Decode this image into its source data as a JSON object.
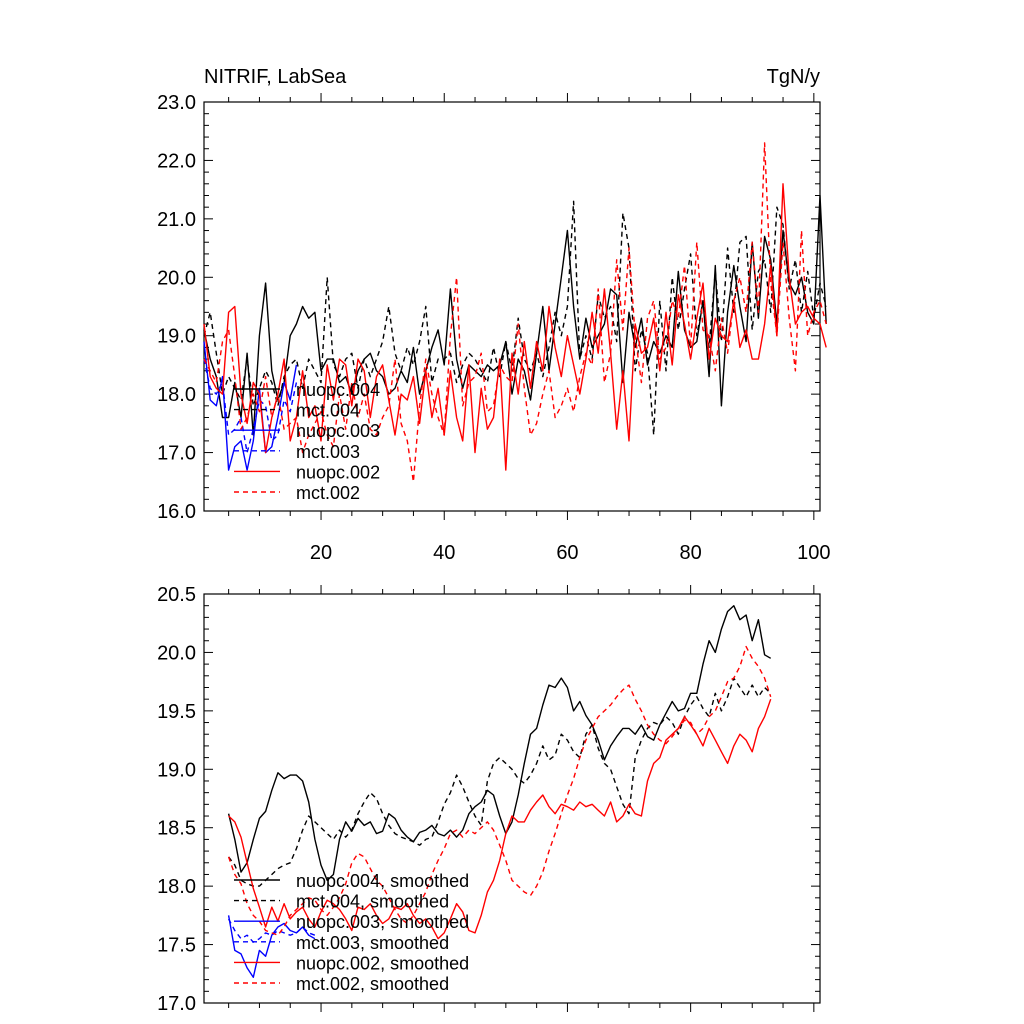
{
  "chart_data": [
    {
      "type": "line",
      "title": "NITRIF, LabSea",
      "units": "TgN/y",
      "xlim": [
        1,
        101
      ],
      "ylim": [
        16.0,
        23.0
      ],
      "x_ticks": [
        20,
        40,
        60,
        80,
        100
      ],
      "y_ticks": [
        "16.0",
        "17.0",
        "18.0",
        "19.0",
        "20.0",
        "21.0",
        "22.0",
        "23.0"
      ],
      "legend": {
        "placement": "bottom-left"
      },
      "series": [
        {
          "name": "nuopc.004",
          "color": "#000000",
          "dash": "solid",
          "x_start": 1,
          "values": [
            19.1,
            18.6,
            18.3,
            17.6,
            17.6,
            18.2,
            17.6,
            18.7,
            17.3,
            19.0,
            19.9,
            18.4,
            17.9,
            18.2,
            19.0,
            19.2,
            19.5,
            19.3,
            19.4,
            18.4,
            18.6,
            18.6,
            18.2,
            18.3,
            18.0,
            18.4,
            18.6,
            18.7,
            18.4,
            18.3,
            18.0,
            18.1,
            18.4,
            18.2,
            18.8,
            18.0,
            18.4,
            18.8,
            19.1,
            18.5,
            19.8,
            18.6,
            18.1,
            18.5,
            18.4,
            18.3,
            18.5,
            18.4,
            18.5,
            18.9,
            18.0,
            18.6,
            18.4,
            17.9,
            18.7,
            19.5,
            18.4,
            19.2,
            20.0,
            20.8,
            19.5,
            18.6,
            19.3,
            18.8,
            19.0,
            19.2,
            19.8,
            19.7,
            18.2,
            19.4,
            18.8,
            19.3,
            18.5,
            18.9,
            18.7,
            19.0,
            18.8,
            20.1,
            19.1,
            18.8,
            18.9,
            19.6,
            18.3,
            20.2,
            17.8,
            19.4,
            20.2,
            19.5,
            18.9,
            20.6,
            19.3,
            20.7,
            20.3,
            19.2,
            20.8,
            19.9,
            19.7,
            20.0,
            19.4,
            19.2,
            21.4,
            19.2
          ]
        },
        {
          "name": "mct.004",
          "color": "#000000",
          "dash": "dashed",
          "x_start": 1,
          "values": [
            19.0,
            19.4,
            18.7,
            18.0,
            18.3,
            18.1,
            17.9,
            18.6,
            17.8,
            18.1,
            18.4,
            18.2,
            17.8,
            18.3,
            18.5,
            18.6,
            18.1,
            18.6,
            18.4,
            18.2,
            20.0,
            18.5,
            18.3,
            18.6,
            18.7,
            18.1,
            18.6,
            18.3,
            18.6,
            18.9,
            19.5,
            18.7,
            18.4,
            18.8,
            18.5,
            18.9,
            19.5,
            18.2,
            18.6,
            18.6,
            18.7,
            18.2,
            18.5,
            18.7,
            18.6,
            18.4,
            18.2,
            18.8,
            18.3,
            18.9,
            18.4,
            19.3,
            18.6,
            18.4,
            18.7,
            18.3,
            18.8,
            19.4,
            19.0,
            19.5,
            21.3,
            18.6,
            19.0,
            18.6,
            19.7,
            19.3,
            19.5,
            18.9,
            21.1,
            20.5,
            18.4,
            19.1,
            18.7,
            17.3,
            19.6,
            18.4,
            20.0,
            19.1,
            19.8,
            20.4,
            19.0,
            19.6,
            18.8,
            20.1,
            18.9,
            20.5,
            19.4,
            20.6,
            20.7,
            19.1,
            20.1,
            20.3,
            19.4,
            21.2,
            20.9,
            19.8,
            20.3,
            19.4,
            20.1,
            19.3,
            19.9,
            19.5
          ]
        },
        {
          "name": "nuopc.003",
          "color": "#0000ff",
          "dash": "solid",
          "x_start": 1,
          "values": [
            18.9,
            17.9,
            17.8,
            18.3,
            16.7,
            17.1,
            17.2,
            16.7,
            17.2,
            18.1,
            17.0,
            17.1,
            17.6,
            18.2,
            17.9,
            18.5
          ]
        },
        {
          "name": "mct.003",
          "color": "#0000ff",
          "dash": "dashed",
          "x_start": 1,
          "values": [
            18.6,
            18.1,
            18.0,
            18.2,
            17.3,
            17.4,
            17.6,
            17.0,
            17.4,
            17.9,
            17.8,
            17.2,
            17.3,
            17.9,
            17.7,
            18.2
          ]
        },
        {
          "name": "nuopc.002",
          "color": "#ff0000",
          "dash": "solid",
          "x_start": 1,
          "values": [
            19.2,
            18.3,
            18.1,
            18.0,
            19.4,
            19.5,
            18.0,
            17.5,
            18.2,
            18.0,
            17.0,
            17.6,
            18.0,
            18.6,
            17.2,
            17.6,
            18.4,
            17.6,
            17.8,
            17.2,
            18.5,
            17.9,
            18.6,
            18.5,
            17.8,
            18.6,
            18.4,
            17.6,
            18.3,
            18.5,
            17.9,
            17.3,
            18.0,
            17.9,
            18.3,
            17.5,
            18.4,
            17.6,
            18.1,
            17.3,
            18.4,
            17.6,
            17.2,
            18.5,
            17.0,
            18.1,
            17.4,
            17.6,
            18.6,
            16.7,
            18.7,
            18.0,
            18.9,
            18.1,
            18.9,
            18.4,
            19.5,
            18.8,
            18.3,
            19.0,
            18.5,
            18.0,
            18.6,
            19.4,
            18.7,
            19.8,
            18.7,
            17.4,
            18.4,
            17.2,
            19.2,
            18.7,
            18.8,
            19.3,
            18.4,
            19.4,
            18.5,
            19.7,
            19.2,
            18.6,
            19.3,
            19.9,
            18.6,
            19.3,
            19.0,
            18.9,
            19.6,
            18.8,
            19.1,
            18.6,
            18.6,
            19.2,
            20.2,
            19.0,
            21.6,
            20.0,
            19.2,
            19.4,
            19.5,
            19.3,
            19.2,
            18.8
          ]
        },
        {
          "name": "mct.002",
          "color": "#ff0000",
          "dash": "dashed",
          "x_start": 1,
          "values": [
            18.6,
            18.4,
            18.2,
            18.9,
            19.1,
            18.3,
            17.4,
            17.6,
            18.0,
            17.7,
            18.3,
            17.6,
            18.0,
            17.4,
            17.5,
            17.6,
            17.0,
            17.3,
            17.5,
            17.7,
            17.3,
            17.1,
            18.0,
            17.4,
            18.2,
            17.6,
            18.0,
            17.4,
            17.3,
            17.6,
            17.8,
            18.6,
            17.5,
            17.2,
            16.5,
            17.8,
            18.6,
            18.0,
            17.6,
            17.3,
            19.0,
            20.0,
            17.8,
            18.2,
            18.3,
            18.7,
            17.7,
            17.8,
            18.5,
            18.3,
            18.2,
            19.2,
            18.1,
            17.3,
            17.5,
            18.0,
            18.4,
            17.6,
            17.8,
            18.1,
            17.7,
            18.3,
            18.7,
            18.5,
            19.8,
            18.2,
            18.7,
            20.3,
            19.1,
            20.5,
            19.0,
            18.2,
            19.3,
            19.6,
            18.6,
            18.8,
            19.6,
            19.3,
            20.2,
            18.8,
            20.6,
            19.1,
            19.0,
            18.4,
            19.3,
            18.7,
            19.6,
            20.0,
            19.4,
            20.6,
            19.4,
            22.3,
            19.9,
            19.0,
            20.6,
            19.3,
            18.4,
            20.8,
            19.0,
            19.4,
            19.6,
            19.2
          ]
        }
      ]
    },
    {
      "type": "line",
      "title": "",
      "xlim": [
        1,
        101
      ],
      "ylim": [
        17.0,
        20.5
      ],
      "x_ticks": [
        20,
        40,
        60,
        80,
        100
      ],
      "y_ticks": [
        "17.0",
        "17.5",
        "18.0",
        "18.5",
        "19.0",
        "19.5",
        "20.0",
        "20.5"
      ],
      "legend": {
        "placement": "bottom-left"
      },
      "series": [
        {
          "name": "nuopc.004, smoothed",
          "color": "#000000",
          "dash": "solid",
          "x_start": 5,
          "values": [
            18.62,
            18.4,
            18.12,
            18.2,
            18.4,
            18.58,
            18.64,
            18.82,
            18.97,
            18.92,
            18.95,
            18.95,
            18.9,
            18.72,
            18.4,
            18.18,
            18.05,
            18.1,
            18.4,
            18.55,
            18.47,
            18.58,
            18.52,
            18.55,
            18.45,
            18.47,
            18.62,
            18.58,
            18.48,
            18.42,
            18.38,
            18.46,
            18.48,
            18.52,
            18.45,
            18.43,
            18.48,
            18.42,
            18.48,
            18.62,
            18.68,
            18.72,
            18.82,
            18.78,
            18.6,
            18.45,
            18.55,
            18.78,
            19.05,
            19.3,
            19.35,
            19.55,
            19.72,
            19.7,
            19.78,
            19.7,
            19.5,
            19.58,
            19.46,
            19.38,
            19.25,
            19.08,
            19.2,
            19.28,
            19.35,
            19.35,
            19.3,
            19.38,
            19.28,
            19.25,
            19.38,
            19.48,
            19.58,
            19.5,
            19.52,
            19.65,
            19.65,
            19.9,
            20.1,
            20.0,
            20.2,
            20.35,
            20.4,
            20.28,
            20.32,
            20.1,
            20.28,
            19.98,
            19.95
          ]
        },
        {
          "name": "mct.004, smoothed",
          "color": "#000000",
          "dash": "dashed",
          "x_start": 5,
          "values": [
            18.25,
            18.18,
            18.05,
            18.02,
            18.0,
            18.0,
            18.05,
            18.1,
            18.15,
            18.18,
            18.2,
            18.32,
            18.48,
            18.6,
            18.55,
            18.5,
            18.45,
            18.4,
            18.48,
            18.42,
            18.48,
            18.62,
            18.72,
            18.8,
            18.75,
            18.62,
            18.52,
            18.45,
            18.42,
            18.4,
            18.38,
            18.35,
            18.4,
            18.42,
            18.55,
            18.7,
            18.8,
            18.95,
            18.85,
            18.72,
            18.6,
            18.52,
            18.9,
            19.05,
            19.1,
            19.05,
            19.0,
            18.92,
            18.88,
            18.95,
            19.05,
            19.2,
            19.08,
            19.12,
            19.3,
            19.25,
            19.15,
            19.1,
            19.3,
            19.38,
            19.18,
            19.05,
            19.0,
            18.85,
            18.7,
            18.62,
            19.1,
            19.25,
            19.35,
            19.4,
            19.38,
            19.45,
            19.4,
            19.3,
            19.45,
            19.55,
            19.62,
            19.52,
            19.45,
            19.65,
            19.5,
            19.62,
            19.78,
            19.7,
            19.62,
            19.72,
            19.62,
            19.7,
            19.65
          ]
        },
        {
          "name": "nuopc.003, smoothed",
          "color": "#0000ff",
          "dash": "solid",
          "x_start": 5,
          "values": [
            17.75,
            17.45,
            17.42,
            17.3,
            17.22,
            17.45,
            17.4,
            17.58,
            17.65,
            17.68,
            17.62,
            17.6,
            17.65,
            17.58,
            17.55
          ]
        },
        {
          "name": "mct.003, smoothed",
          "color": "#0000ff",
          "dash": "dashed",
          "x_start": 5,
          "values": [
            17.72,
            17.62,
            17.55,
            17.58,
            17.52,
            17.55,
            17.6,
            17.58,
            17.62,
            17.6,
            17.58,
            17.6,
            17.65,
            17.6,
            17.58
          ]
        },
        {
          "name": "nuopc.002, smoothed",
          "color": "#ff0000",
          "dash": "solid",
          "x_start": 5,
          "values": [
            18.6,
            18.55,
            18.42,
            18.2,
            17.98,
            17.82,
            17.65,
            17.82,
            17.7,
            17.85,
            17.72,
            17.78,
            17.82,
            17.72,
            17.65,
            17.78,
            17.88,
            17.85,
            17.8,
            17.72,
            17.62,
            17.82,
            17.8,
            17.85,
            17.75,
            17.68,
            17.72,
            17.82,
            17.8,
            17.85,
            17.75,
            17.68,
            17.72,
            17.65,
            17.55,
            17.6,
            17.72,
            17.85,
            17.78,
            17.62,
            17.6,
            17.75,
            17.95,
            18.05,
            18.22,
            18.45,
            18.6,
            18.55,
            18.55,
            18.65,
            18.72,
            18.78,
            18.68,
            18.62,
            18.7,
            18.68,
            18.65,
            18.72,
            18.68,
            18.7,
            18.65,
            18.6,
            18.72,
            18.55,
            18.6,
            18.7,
            18.62,
            18.6,
            18.9,
            19.05,
            19.1,
            19.25,
            19.3,
            19.35,
            19.45,
            19.38,
            19.3,
            19.2,
            19.35,
            19.25,
            19.15,
            19.05,
            19.2,
            19.3,
            19.25,
            19.15,
            19.35,
            19.45,
            19.6
          ]
        },
        {
          "name": "mct.002, smoothed",
          "color": "#ff0000",
          "dash": "dashed",
          "x_start": 5,
          "values": [
            18.25,
            18.1,
            18.02,
            17.85,
            17.75,
            17.7,
            17.62,
            17.6,
            17.58,
            17.65,
            17.75,
            17.8,
            17.85,
            17.9,
            17.88,
            17.8,
            17.75,
            17.82,
            17.9,
            18.02,
            18.2,
            18.28,
            18.25,
            18.15,
            18.05,
            18.0,
            17.9,
            17.8,
            17.72,
            17.68,
            17.75,
            17.85,
            17.95,
            18.1,
            18.22,
            18.32,
            18.45,
            18.48,
            18.42,
            18.48,
            18.45,
            18.5,
            18.55,
            18.48,
            18.35,
            18.22,
            18.05,
            18.0,
            17.95,
            17.92,
            18.0,
            18.12,
            18.3,
            18.45,
            18.62,
            18.78,
            18.92,
            19.1,
            19.25,
            19.35,
            19.45,
            19.5,
            19.55,
            19.62,
            19.68,
            19.72,
            19.6,
            19.5,
            19.38,
            19.3,
            19.25,
            19.22,
            19.28,
            19.35,
            19.42,
            19.4,
            19.3,
            19.35,
            19.45,
            19.5,
            19.62,
            19.75,
            19.78,
            19.88,
            20.05,
            19.95,
            19.88,
            19.78,
            19.62
          ]
        }
      ]
    }
  ]
}
